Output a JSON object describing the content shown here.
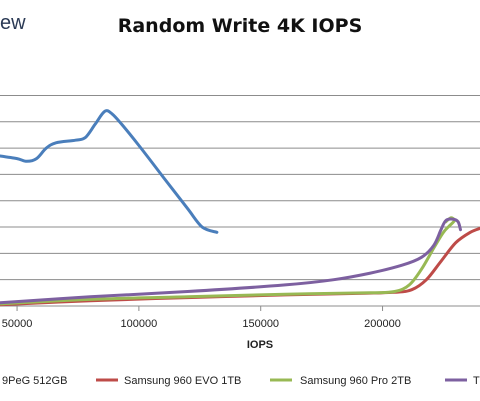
{
  "logo_text": "ew",
  "chart_data": {
    "type": "line",
    "title": "Random Write 4K IOPS",
    "xlabel": "IOPS",
    "ylabel": "",
    "x_ticks": [
      "50000",
      "100000",
      "150000",
      "200000"
    ],
    "x_tick_values": [
      50000,
      100000,
      150000,
      200000
    ],
    "xlim": [
      43000,
      240000
    ],
    "ylim": [
      0,
      9.5
    ],
    "grid": "horizontal",
    "legend_position": "bottom",
    "series": [
      {
        "name": "",
        "legend_label": "9PeG 512GB",
        "color": "#4a7ebb",
        "points": [
          [
            43000,
            5.7
          ],
          [
            50000,
            5.6
          ],
          [
            54000,
            5.5
          ],
          [
            58000,
            5.6
          ],
          [
            62000,
            6.0
          ],
          [
            66000,
            6.2
          ],
          [
            74000,
            6.3
          ],
          [
            78000,
            6.4
          ],
          [
            82000,
            6.9
          ],
          [
            86000,
            7.4
          ],
          [
            89000,
            7.3
          ],
          [
            93000,
            6.9
          ],
          [
            100000,
            6.1
          ],
          [
            110000,
            4.9
          ],
          [
            120000,
            3.7
          ],
          [
            126000,
            3.0
          ],
          [
            132000,
            2.8
          ]
        ]
      },
      {
        "name": "Samsung 960 EVO 1TB",
        "legend_label": "Samsung 960 EVO 1TB",
        "color": "#be4b48",
        "points": [
          [
            43000,
            0.05
          ],
          [
            80000,
            0.2
          ],
          [
            120000,
            0.32
          ],
          [
            160000,
            0.42
          ],
          [
            190000,
            0.48
          ],
          [
            205000,
            0.52
          ],
          [
            212000,
            0.62
          ],
          [
            218000,
            1.0
          ],
          [
            224000,
            1.7
          ],
          [
            230000,
            2.4
          ],
          [
            236000,
            2.8
          ],
          [
            240000,
            2.95
          ]
        ]
      },
      {
        "name": "Samsung 960 Pro 2TB",
        "legend_label": "Samsung 960 Pro 2TB",
        "color": "#98b954",
        "points": [
          [
            43000,
            0.08
          ],
          [
            80000,
            0.25
          ],
          [
            120000,
            0.35
          ],
          [
            160000,
            0.45
          ],
          [
            195000,
            0.5
          ],
          [
            205000,
            0.55
          ],
          [
            211000,
            0.8
          ],
          [
            216000,
            1.4
          ],
          [
            221000,
            2.2
          ],
          [
            225000,
            2.8
          ],
          [
            227500,
            3.05
          ],
          [
            229500,
            3.25
          ],
          [
            228000,
            3.35
          ],
          [
            226000,
            3.2
          ]
        ]
      },
      {
        "name": "",
        "legend_label": "T",
        "color": "#7d60a0",
        "points": [
          [
            43000,
            0.12
          ],
          [
            80000,
            0.35
          ],
          [
            120000,
            0.55
          ],
          [
            160000,
            0.8
          ],
          [
            180000,
            1.0
          ],
          [
            195000,
            1.25
          ],
          [
            208000,
            1.55
          ],
          [
            216000,
            1.85
          ],
          [
            221000,
            2.3
          ],
          [
            224000,
            2.9
          ],
          [
            226000,
            3.25
          ],
          [
            229000,
            3.3
          ],
          [
            231000,
            3.2
          ],
          [
            232000,
            2.9
          ]
        ]
      }
    ]
  }
}
